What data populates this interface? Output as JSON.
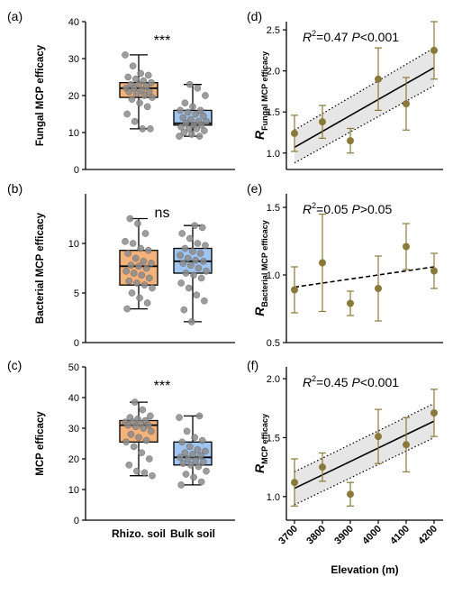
{
  "colors": {
    "rhizo_box": "#f4b27c",
    "bulk_box": "#9fc5f0",
    "point_gray": "#8c8c8c",
    "regression_point": "#8a7a3a",
    "ci_band": "#e6e6e6"
  },
  "chart_data": [
    {
      "id": "a",
      "type": "box",
      "panel_label": "(a)",
      "ylabel": "Fungal MCP efficacy",
      "ylim": [
        0,
        40
      ],
      "yticks": [
        0,
        10,
        20,
        30,
        40
      ],
      "categories": [
        "Rhizo. soil",
        "Bulk soil"
      ],
      "significance": "***",
      "boxes": [
        {
          "min": 11,
          "q1": 19.5,
          "median": 22,
          "q3": 23.5,
          "max": 31,
          "points": [
            31,
            28,
            26,
            25.5,
            25,
            24.5,
            24,
            23.5,
            23,
            23,
            22.5,
            22,
            22,
            21.5,
            21,
            21,
            20.5,
            20,
            19.5,
            19,
            18,
            17,
            15,
            13,
            11,
            11
          ]
        },
        {
          "min": 9,
          "q1": 12,
          "median": 12.5,
          "q3": 16,
          "max": 23,
          "points": [
            23,
            22,
            20,
            18,
            17,
            16,
            16,
            15.5,
            15,
            14.5,
            14,
            13.5,
            13,
            13,
            12.5,
            12,
            12,
            11.5,
            11,
            11,
            10.5,
            10,
            9.5,
            9,
            9
          ]
        }
      ]
    },
    {
      "id": "b",
      "type": "box",
      "panel_label": "(b)",
      "ylabel": "Bacterial MCP efficacy",
      "ylim": [
        0,
        15
      ],
      "yticks": [
        0,
        5,
        10
      ],
      "categories": [
        "Rhizo. soil",
        "Bulk soil"
      ],
      "significance": "ns",
      "boxes": [
        {
          "min": 3.4,
          "q1": 5.8,
          "median": 7.7,
          "q3": 9.3,
          "max": 12.5,
          "points": [
            12.5,
            12,
            11,
            10.2,
            10,
            9.5,
            9.3,
            9,
            8.5,
            8.2,
            8,
            7.8,
            7.7,
            7.5,
            7.2,
            7,
            6.8,
            6.5,
            6.2,
            6,
            5.8,
            5.5,
            5,
            4.5,
            4,
            3.4
          ]
        },
        {
          "min": 2.1,
          "q1": 7,
          "median": 8.2,
          "q3": 9.5,
          "max": 11.8,
          "points": [
            11.8,
            11.6,
            11,
            10.5,
            10,
            9.8,
            9.5,
            9.2,
            9,
            8.8,
            8.5,
            8.3,
            8.2,
            8,
            7.8,
            7.5,
            7.2,
            7,
            6.8,
            6.5,
            6,
            5.5,
            4.8,
            4.2,
            3.3,
            2.1
          ]
        }
      ]
    },
    {
      "id": "c",
      "type": "box",
      "panel_label": "(c)",
      "ylabel": "MCP efficacy",
      "ylim": [
        0,
        50
      ],
      "yticks": [
        0,
        10,
        20,
        30,
        40,
        50
      ],
      "categories": [
        "Rhizo. soil",
        "Bulk soil"
      ],
      "significance": "***",
      "boxes": [
        {
          "min": 14.5,
          "q1": 25.5,
          "median": 31,
          "q3": 32.5,
          "max": 38.5,
          "points": [
            38.5,
            36,
            34,
            33.5,
            33,
            32.5,
            32,
            32,
            31.5,
            31,
            31,
            30.5,
            30,
            29,
            28,
            27,
            26,
            25.5,
            24,
            22,
            20,
            18,
            16,
            15.5,
            14.5
          ]
        },
        {
          "min": 11.5,
          "q1": 18,
          "median": 20.5,
          "q3": 25.5,
          "max": 34,
          "points": [
            34,
            33.5,
            29,
            27,
            26,
            25.5,
            24,
            23,
            22.5,
            22,
            21.5,
            21,
            20.5,
            20,
            19.5,
            19,
            18.5,
            18,
            17.5,
            16,
            15,
            14,
            12.5,
            11.5
          ]
        }
      ]
    },
    {
      "id": "d",
      "type": "scatter",
      "panel_label": "(d)",
      "ylabel_main": "R",
      "ylabel_sub": "Fungal MCP efficacy",
      "stat_r2_label": "R",
      "stat_r2_value": "=0.47 ",
      "stat_p_label": "P",
      "stat_p_value": "<0.001",
      "ylim": [
        0.8,
        2.6
      ],
      "yticks": [
        1.0,
        1.5,
        2.0,
        2.5
      ],
      "x": [
        3700,
        3800,
        3900,
        4000,
        4100,
        4200
      ],
      "y": [
        1.24,
        1.38,
        1.15,
        1.9,
        1.6,
        2.25
      ],
      "err": [
        0.22,
        0.2,
        0.15,
        0.38,
        0.32,
        0.35
      ],
      "fit": {
        "x0": 3700,
        "y0": 1.07,
        "x1": 4200,
        "y1": 2.04,
        "style": "solid"
      },
      "ci": {
        "lower0": 0.88,
        "upper0": 1.28,
        "lower1": 1.82,
        "upper1": 2.28
      }
    },
    {
      "id": "e",
      "type": "scatter",
      "panel_label": "(e)",
      "ylabel_main": "R",
      "ylabel_sub": "Bacterial MCP efficacy",
      "stat_r2_label": "R",
      "stat_r2_value": "=0.05 ",
      "stat_p_label": "P",
      "stat_p_value": ">0.05",
      "ylim": [
        0.5,
        1.6
      ],
      "yticks": [
        0.5,
        1.0,
        1.5
      ],
      "x": [
        3700,
        3800,
        3900,
        4000,
        4100,
        4200
      ],
      "y": [
        0.89,
        1.09,
        0.79,
        0.9,
        1.21,
        1.03
      ],
      "err": [
        0.17,
        0.36,
        0.09,
        0.24,
        0.17,
        0.13
      ],
      "fit": {
        "x0": 3700,
        "y0": 0.91,
        "x1": 4200,
        "y1": 1.06,
        "style": "dashed"
      }
    },
    {
      "id": "f",
      "type": "scatter",
      "panel_label": "(f)",
      "ylabel_main": "R",
      "ylabel_sub": "MCP efficacy",
      "stat_r2_label": "R",
      "stat_r2_value": "=0.45 ",
      "stat_p_label": "P",
      "stat_p_value": "<0.001",
      "xlabel": "Elevation (m)",
      "ylim": [
        0.8,
        2.1
      ],
      "yticks": [
        1.0,
        1.5,
        2.0
      ],
      "x": [
        3700,
        3800,
        3900,
        4000,
        4100,
        4200
      ],
      "xticks": [
        3700,
        3800,
        3900,
        4000,
        4100,
        4200
      ],
      "y": [
        1.12,
        1.25,
        1.02,
        1.51,
        1.44,
        1.71
      ],
      "err": [
        0.2,
        0.12,
        0.1,
        0.23,
        0.23,
        0.2
      ],
      "fit": {
        "x0": 3700,
        "y0": 1.07,
        "x1": 4200,
        "y1": 1.64,
        "style": "solid"
      },
      "ci": {
        "lower0": 0.93,
        "upper0": 1.21,
        "lower1": 1.5,
        "upper1": 1.79
      }
    }
  ]
}
